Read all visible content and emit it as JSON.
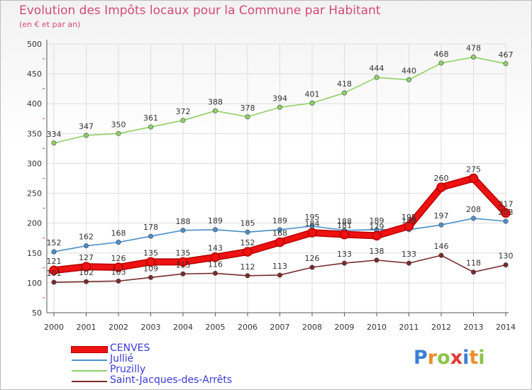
{
  "header": {
    "title": "Evolution des Impôts locaux pour la Commune par Habitant",
    "subtitle": "(en € et par an)"
  },
  "logo": {
    "letters": [
      "P",
      "r",
      "o",
      "x",
      "i",
      "t",
      "i"
    ],
    "colors": [
      "#3b7fd4",
      "#e8902a",
      "#8bc34a",
      "#e53935",
      "#3b7fd4",
      "#e8902a",
      "#8bc34a"
    ]
  },
  "chart_data": {
    "type": "line",
    "title": "Evolution des Impôts locaux pour la Commune par Habitant",
    "subtitle": "(en € et par an)",
    "xlabel": "",
    "ylabel": "",
    "ylim": [
      50,
      500
    ],
    "yticks": [
      50,
      100,
      150,
      200,
      250,
      300,
      350,
      400,
      450,
      500
    ],
    "categories": [
      "2000",
      "2001",
      "2002",
      "2003",
      "2004",
      "2005",
      "2006",
      "2007",
      "2008",
      "2009",
      "2010",
      "2011",
      "2012",
      "2013",
      "2014"
    ],
    "grid": true,
    "legend_position": "bottom-left",
    "series": [
      {
        "name": "Pruzilly",
        "color": "#8fd166",
        "values": [
          334,
          347,
          350,
          361,
          372,
          388,
          378,
          394,
          401,
          418,
          444,
          440,
          468,
          478,
          467
        ]
      },
      {
        "name": "Saint-Jacques-des-Arrêts",
        "color": "#7a2a2a",
        "values": [
          101,
          102,
          103,
          109,
          115,
          116,
          112,
          113,
          126,
          133,
          138,
          133,
          146,
          118,
          130
        ]
      },
      {
        "name": "Jullié",
        "color": "#4a8fc9",
        "values": [
          152,
          162,
          168,
          178,
          188,
          189,
          185,
          189,
          195,
          188,
          189,
          189,
          197,
          208,
          203
        ]
      },
      {
        "name": "CENVES",
        "color": "#ee1111",
        "values": [
          121,
          127,
          126,
          135,
          135,
          143,
          152,
          168,
          184,
          181,
          179,
          195,
          260,
          275,
          217
        ]
      }
    ],
    "legend_order": [
      "CENVES",
      "Jullié",
      "Pruzilly",
      "Saint-Jacques-des-Arrêts"
    ]
  }
}
